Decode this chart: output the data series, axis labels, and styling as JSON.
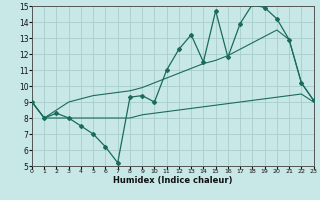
{
  "xlabel": "Humidex (Indice chaleur)",
  "bg_color": "#c8e8e8",
  "grid_color": "#a8cccc",
  "line_color": "#1a6b5a",
  "xlim": [
    0,
    23
  ],
  "ylim": [
    5,
    15
  ],
  "xticks": [
    0,
    1,
    2,
    3,
    4,
    5,
    6,
    7,
    8,
    9,
    10,
    11,
    12,
    13,
    14,
    15,
    16,
    17,
    18,
    19,
    20,
    21,
    22,
    23
  ],
  "yticks": [
    5,
    6,
    7,
    8,
    9,
    10,
    11,
    12,
    13,
    14,
    15
  ],
  "line1_x": [
    0,
    1,
    2,
    3,
    4,
    5,
    6,
    7,
    8,
    9,
    10,
    11,
    12,
    13,
    14,
    15,
    16,
    17,
    18,
    19,
    20,
    21,
    22,
    23
  ],
  "line1_y": [
    9.0,
    8.0,
    8.3,
    8.0,
    7.5,
    7.0,
    6.2,
    5.2,
    9.3,
    9.4,
    9.0,
    11.0,
    12.3,
    13.2,
    11.5,
    14.7,
    11.8,
    13.9,
    15.1,
    14.9,
    14.2,
    12.9,
    10.2,
    9.1
  ],
  "line2_x": [
    0,
    1,
    2,
    3,
    4,
    5,
    6,
    7,
    8,
    9,
    10,
    11,
    12,
    13,
    14,
    15,
    16,
    17,
    18,
    19,
    20,
    21,
    22,
    23
  ],
  "line2_y": [
    9.0,
    8.0,
    8.0,
    8.0,
    8.0,
    8.0,
    8.0,
    8.0,
    8.0,
    8.2,
    8.3,
    8.4,
    8.5,
    8.6,
    8.7,
    8.8,
    8.9,
    9.0,
    9.1,
    9.2,
    9.3,
    9.4,
    9.5,
    9.0
  ],
  "line3_x": [
    0,
    1,
    2,
    3,
    4,
    5,
    6,
    7,
    8,
    9,
    10,
    11,
    12,
    13,
    14,
    15,
    16,
    17,
    18,
    19,
    20,
    21,
    22,
    23
  ],
  "line3_y": [
    9.0,
    8.0,
    8.5,
    9.0,
    9.2,
    9.4,
    9.5,
    9.6,
    9.7,
    9.9,
    10.2,
    10.5,
    10.8,
    11.1,
    11.4,
    11.6,
    11.9,
    12.3,
    12.7,
    13.1,
    13.5,
    12.9,
    10.2,
    9.1
  ]
}
